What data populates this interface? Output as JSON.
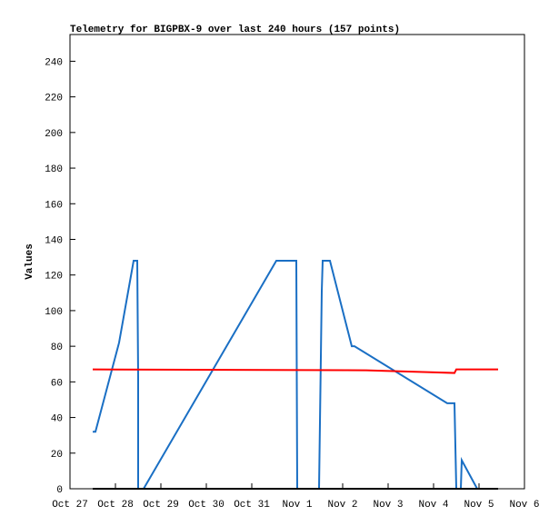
{
  "chart_data": {
    "type": "line",
    "title": "Telemetry for BIGPBX-9 over last 240 hours (157 points)",
    "y_label": "Values",
    "xlim": [
      0,
      10
    ],
    "xticks": [
      {
        "value": 0,
        "label": "Oct 27"
      },
      {
        "value": 1,
        "label": "Oct 28"
      },
      {
        "value": 2,
        "label": "Oct 29"
      },
      {
        "value": 3,
        "label": "Oct 30"
      },
      {
        "value": 4,
        "label": "Oct 31"
      },
      {
        "value": 5,
        "label": "Nov 1"
      },
      {
        "value": 6,
        "label": "Nov 2"
      },
      {
        "value": 7,
        "label": "Nov 3"
      },
      {
        "value": 8,
        "label": "Nov 4"
      },
      {
        "value": 9,
        "label": "Nov 5"
      },
      {
        "value": 10,
        "label": "Nov 6"
      }
    ],
    "ylim": [
      0,
      255
    ],
    "yticks": [
      0,
      20,
      40,
      60,
      80,
      100,
      120,
      140,
      160,
      180,
      200,
      220,
      240
    ],
    "series": [
      {
        "color": "#1a6fc4",
        "x": [
          0.5,
          0.56,
          1.08,
          1.4,
          1.48,
          1.5,
          1.5,
          null,
          1.62,
          4.54,
          4.98,
          5.0,
          5.48,
          5.54,
          5.56,
          5.72,
          6.2,
          6.26,
          8.3,
          8.46,
          8.5,
          null,
          8.6,
          8.62,
          8.96
        ],
        "values": [
          32,
          32,
          82,
          128,
          128,
          63,
          0,
          null,
          0,
          128,
          128,
          0,
          0,
          111,
          128,
          128,
          80,
          80,
          48,
          48,
          0,
          null,
          0,
          16,
          0
        ]
      },
      {
        "color": "#ff0000",
        "x": [
          0.5,
          6.52,
          7.86,
          8.46,
          8.5,
          9.42
        ],
        "values": [
          67,
          66.5,
          65.5,
          65,
          67,
          67
        ]
      },
      {
        "color": "#000000",
        "x": [
          0.5,
          9.42
        ],
        "values": [
          0,
          0
        ]
      }
    ]
  }
}
